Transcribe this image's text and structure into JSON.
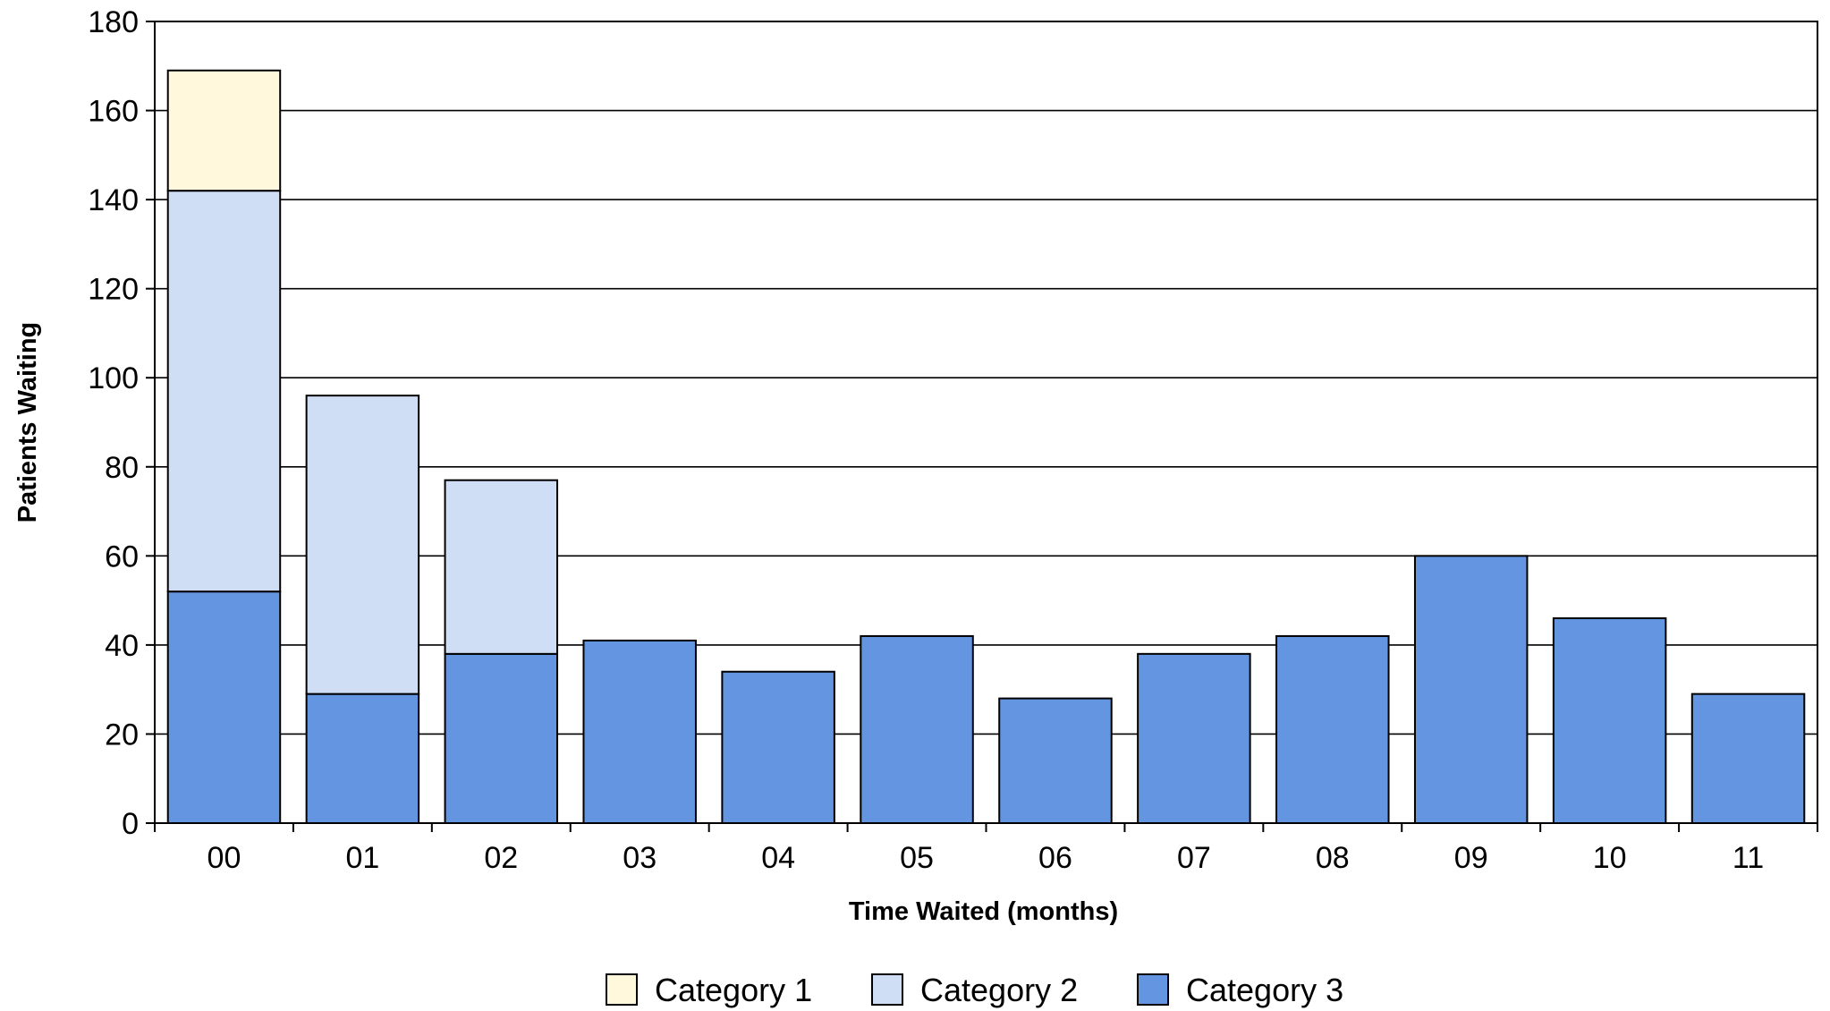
{
  "chart_data": {
    "type": "bar",
    "stacked": true,
    "categories": [
      "00",
      "01",
      "02",
      "03",
      "04",
      "05",
      "06",
      "07",
      "08",
      "09",
      "10",
      "11"
    ],
    "series": [
      {
        "name": "Category 3",
        "color": "#6495E0",
        "values": [
          52,
          29,
          38,
          41,
          34,
          42,
          28,
          38,
          42,
          60,
          46,
          29
        ]
      },
      {
        "name": "Category 2",
        "color": "#CFDDF5",
        "values": [
          90,
          67,
          39,
          0,
          0,
          0,
          0,
          0,
          0,
          0,
          0,
          0
        ]
      },
      {
        "name": "Category 1",
        "color": "#FFF8DC",
        "values": [
          27,
          0,
          0,
          0,
          0,
          0,
          0,
          0,
          0,
          0,
          0,
          0
        ]
      }
    ],
    "legend_order": [
      "Category 1",
      "Category 2",
      "Category 3"
    ],
    "xlabel": "Time Waited (months)",
    "ylabel": "Patients Waiting",
    "ylim": [
      0,
      180
    ],
    "yticks": [
      0,
      20,
      40,
      60,
      80,
      100,
      120,
      140,
      160,
      180
    ],
    "grid": true,
    "legend_position": "bottom-center"
  }
}
